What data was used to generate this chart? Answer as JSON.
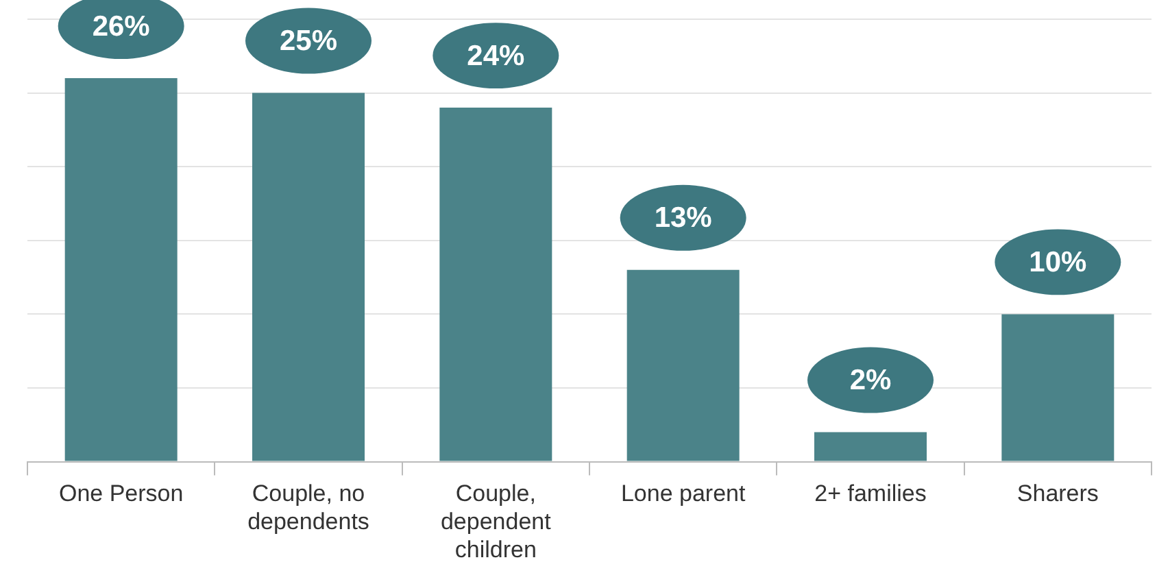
{
  "chart_data": {
    "type": "bar",
    "categories": [
      "One Person",
      "Couple, no dependents",
      "Couple, dependent children",
      "Lone parent",
      "2+ families",
      "Sharers"
    ],
    "values": [
      26,
      25,
      24,
      13,
      2,
      10
    ],
    "color": "#4b8389",
    "value_labels": [
      "26%",
      "25%",
      "24%",
      "13%",
      "2%",
      "10%"
    ],
    "ylim": [
      0,
      30
    ],
    "yticks": [
      {
        "value": 0,
        "label": null
      },
      {
        "value": 5,
        "label": null
      },
      {
        "value": 10,
        "label": null
      },
      {
        "value": 15,
        "label": null
      },
      {
        "value": 20,
        "label": null
      },
      {
        "value": 25,
        "label": null
      },
      {
        "value": 30,
        "label": null
      }
    ],
    "grid": "y",
    "legend": false,
    "tick_labels": "x"
  }
}
